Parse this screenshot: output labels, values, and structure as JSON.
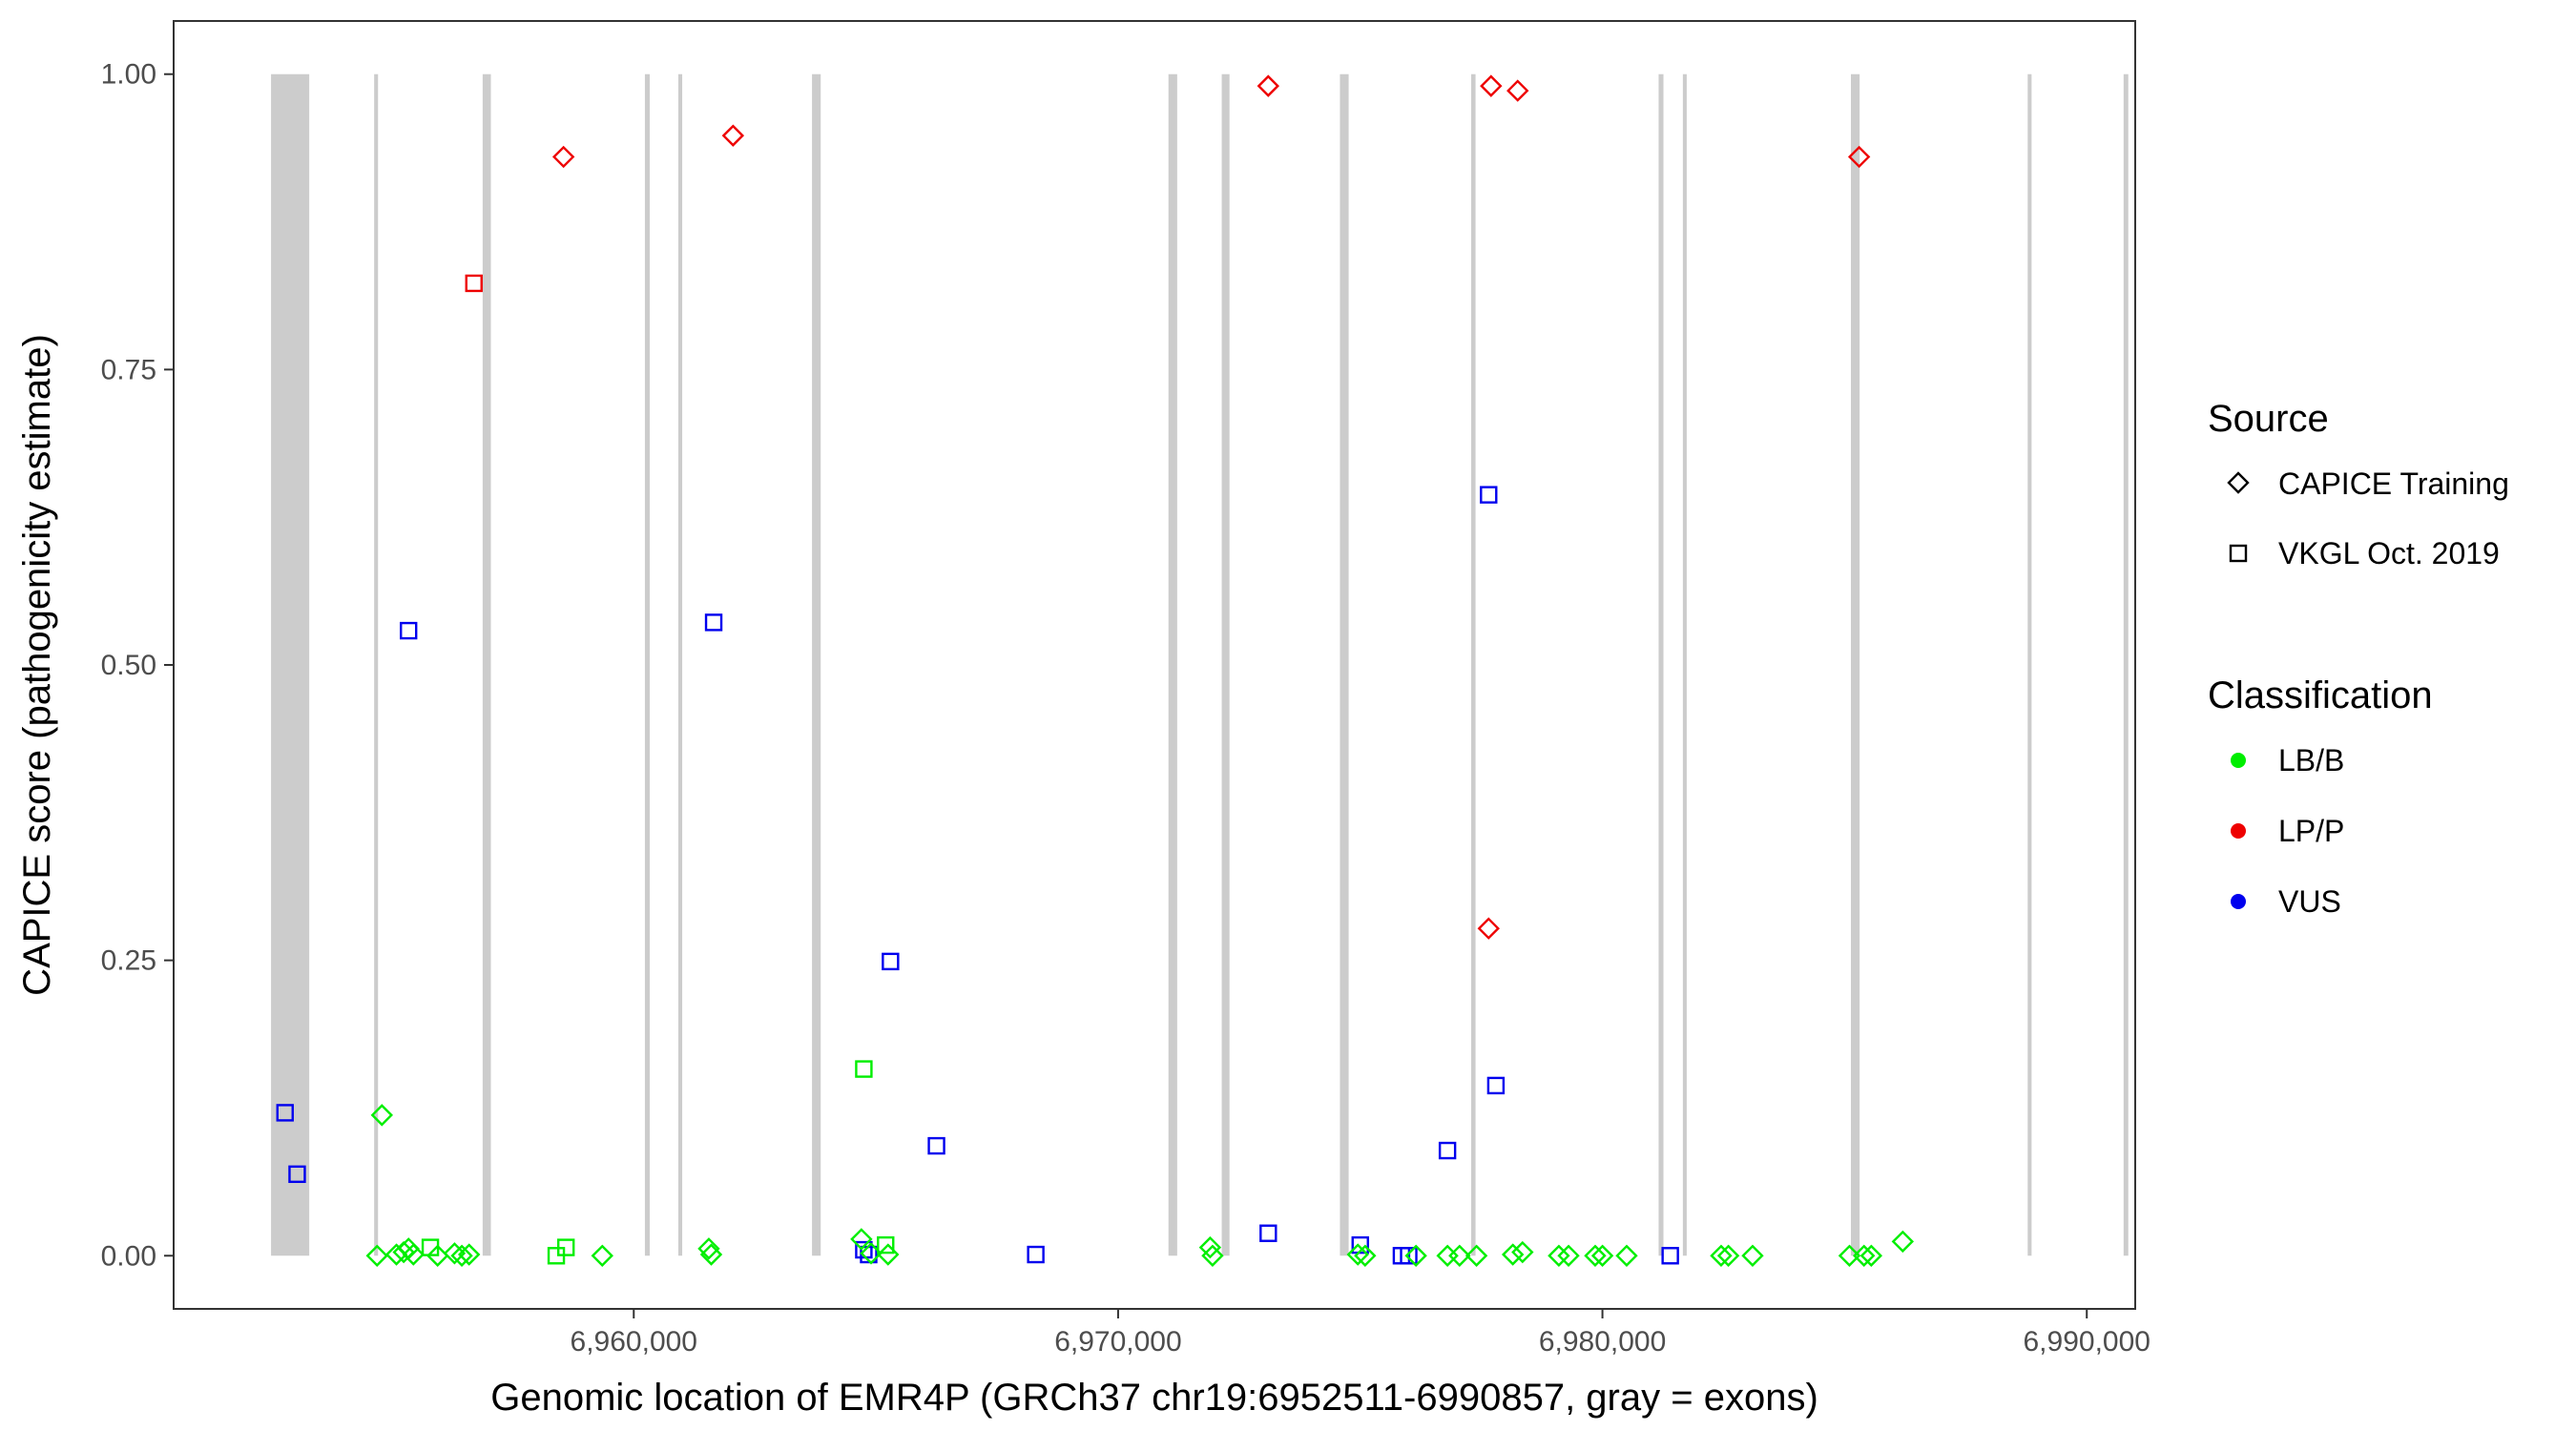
{
  "chart_data": {
    "type": "scatter",
    "xlabel": "Genomic location of EMR4P (GRCh37 chr19:6952511-6990857, gray = exons)",
    "ylabel": "CAPICE score (pathogenicity estimate)",
    "xlim": [
      6950500,
      6991000
    ],
    "ylim": [
      -0.045,
      1.045
    ],
    "x_ticks": [
      6960000,
      6970000,
      6980000,
      6990000
    ],
    "x_tick_labels": [
      "6,960,000",
      "6,970,000",
      "6,980,000",
      "6,990,000"
    ],
    "y_ticks": [
      0,
      0.25,
      0.5,
      0.75,
      1.0
    ],
    "y_tick_labels": [
      "0.00",
      "0.25",
      "0.50",
      "0.75",
      "1.00"
    ],
    "grid": false,
    "exons": [
      [
        6952511,
        6953300
      ],
      [
        6954640,
        6954720
      ],
      [
        6956880,
        6957050
      ],
      [
        6960230,
        6960330
      ],
      [
        6960920,
        6961000
      ],
      [
        6963680,
        6963860
      ],
      [
        6971040,
        6971220
      ],
      [
        6972140,
        6972300
      ],
      [
        6974580,
        6974760
      ],
      [
        6977290,
        6977380
      ],
      [
        6981160,
        6981260
      ],
      [
        6981660,
        6981740
      ],
      [
        6985130,
        6985310
      ],
      [
        6988780,
        6988860
      ],
      [
        6990760,
        6990857
      ]
    ],
    "legend": {
      "placement": "right",
      "source": {
        "title": "Source",
        "entries": [
          {
            "label": "CAPICE Training",
            "shape": "diamond"
          },
          {
            "label": "VKGL Oct. 2019",
            "shape": "square"
          }
        ]
      },
      "classification": {
        "title": "Classification",
        "entries": [
          {
            "label": "LB/B",
            "color": "#00ee00"
          },
          {
            "label": "LP/P",
            "color": "#ee0000"
          },
          {
            "label": "VUS",
            "color": "#0000ee"
          }
        ]
      }
    },
    "colors": {
      "LB/B": "#00ee00",
      "LP/P": "#ee0000",
      "VUS": "#0000ee",
      "exon": "#cccccc"
    },
    "points": [
      {
        "x": 6958550,
        "y": 0.93,
        "source": "CAPICE Training",
        "class": "LP/P"
      },
      {
        "x": 6962050,
        "y": 0.948,
        "source": "CAPICE Training",
        "class": "LP/P"
      },
      {
        "x": 6973100,
        "y": 0.99,
        "source": "CAPICE Training",
        "class": "LP/P"
      },
      {
        "x": 6977700,
        "y": 0.99,
        "source": "CAPICE Training",
        "class": "LP/P"
      },
      {
        "x": 6978250,
        "y": 0.986,
        "source": "CAPICE Training",
        "class": "LP/P"
      },
      {
        "x": 6985300,
        "y": 0.93,
        "source": "CAPICE Training",
        "class": "LP/P"
      },
      {
        "x": 6977650,
        "y": 0.277,
        "source": "CAPICE Training",
        "class": "LP/P"
      },
      {
        "x": 6956700,
        "y": 0.823,
        "source": "VKGL Oct. 2019",
        "class": "LP/P"
      },
      {
        "x": 6952800,
        "y": 0.121,
        "source": "VKGL Oct. 2019",
        "class": "VUS"
      },
      {
        "x": 6953050,
        "y": 0.069,
        "source": "VKGL Oct. 2019",
        "class": "VUS"
      },
      {
        "x": 6955350,
        "y": 0.529,
        "source": "VKGL Oct. 2019",
        "class": "VUS"
      },
      {
        "x": 6961650,
        "y": 0.536,
        "source": "VKGL Oct. 2019",
        "class": "VUS"
      },
      {
        "x": 6965300,
        "y": 0.249,
        "source": "VKGL Oct. 2019",
        "class": "VUS"
      },
      {
        "x": 6966250,
        "y": 0.093,
        "source": "VKGL Oct. 2019",
        "class": "VUS"
      },
      {
        "x": 6964750,
        "y": 0.005,
        "source": "VKGL Oct. 2019",
        "class": "VUS"
      },
      {
        "x": 6964850,
        "y": 0.001,
        "source": "VKGL Oct. 2019",
        "class": "VUS"
      },
      {
        "x": 6968300,
        "y": 0.001,
        "source": "VKGL Oct. 2019",
        "class": "VUS"
      },
      {
        "x": 6973100,
        "y": 0.019,
        "source": "VKGL Oct. 2019",
        "class": "VUS"
      },
      {
        "x": 6975000,
        "y": 0.009,
        "source": "VKGL Oct. 2019",
        "class": "VUS"
      },
      {
        "x": 6975850,
        "y": 0.0,
        "source": "VKGL Oct. 2019",
        "class": "VUS"
      },
      {
        "x": 6976000,
        "y": 0.0,
        "source": "VKGL Oct. 2019",
        "class": "VUS"
      },
      {
        "x": 6976800,
        "y": 0.089,
        "source": "VKGL Oct. 2019",
        "class": "VUS"
      },
      {
        "x": 6977650,
        "y": 0.644,
        "source": "VKGL Oct. 2019",
        "class": "VUS"
      },
      {
        "x": 6977800,
        "y": 0.144,
        "source": "VKGL Oct. 2019",
        "class": "VUS"
      },
      {
        "x": 6981400,
        "y": 0.0,
        "source": "VKGL Oct. 2019",
        "class": "VUS"
      },
      {
        "x": 6964750,
        "y": 0.158,
        "source": "VKGL Oct. 2019",
        "class": "LB/B"
      },
      {
        "x": 6955800,
        "y": 0.007,
        "source": "VKGL Oct. 2019",
        "class": "LB/B"
      },
      {
        "x": 6958400,
        "y": 0.0,
        "source": "VKGL Oct. 2019",
        "class": "LB/B"
      },
      {
        "x": 6958600,
        "y": 0.007,
        "source": "VKGL Oct. 2019",
        "class": "LB/B"
      },
      {
        "x": 6965200,
        "y": 0.009,
        "source": "VKGL Oct. 2019",
        "class": "LB/B"
      },
      {
        "x": 6954800,
        "y": 0.119,
        "source": "CAPICE Training",
        "class": "LB/B"
      },
      {
        "x": 6954700,
        "y": 0.0,
        "source": "CAPICE Training",
        "class": "LB/B"
      },
      {
        "x": 6955100,
        "y": 0.001,
        "source": "CAPICE Training",
        "class": "LB/B"
      },
      {
        "x": 6955250,
        "y": 0.003,
        "source": "CAPICE Training",
        "class": "LB/B"
      },
      {
        "x": 6955350,
        "y": 0.006,
        "source": "CAPICE Training",
        "class": "LB/B"
      },
      {
        "x": 6955450,
        "y": 0.001,
        "source": "CAPICE Training",
        "class": "LB/B"
      },
      {
        "x": 6955950,
        "y": 0.0,
        "source": "CAPICE Training",
        "class": "LB/B"
      },
      {
        "x": 6956300,
        "y": 0.002,
        "source": "CAPICE Training",
        "class": "LB/B"
      },
      {
        "x": 6956450,
        "y": 0.0,
        "source": "CAPICE Training",
        "class": "LB/B"
      },
      {
        "x": 6956600,
        "y": 0.001,
        "source": "CAPICE Training",
        "class": "LB/B"
      },
      {
        "x": 6959350,
        "y": 0.0,
        "source": "CAPICE Training",
        "class": "LB/B"
      },
      {
        "x": 6961550,
        "y": 0.006,
        "source": "CAPICE Training",
        "class": "LB/B"
      },
      {
        "x": 6961600,
        "y": 0.001,
        "source": "CAPICE Training",
        "class": "LB/B"
      },
      {
        "x": 6964700,
        "y": 0.014,
        "source": "CAPICE Training",
        "class": "LB/B"
      },
      {
        "x": 6964900,
        "y": 0.002,
        "source": "CAPICE Training",
        "class": "LB/B"
      },
      {
        "x": 6965250,
        "y": 0.001,
        "source": "CAPICE Training",
        "class": "LB/B"
      },
      {
        "x": 6971900,
        "y": 0.007,
        "source": "CAPICE Training",
        "class": "LB/B"
      },
      {
        "x": 6971950,
        "y": 0.0,
        "source": "CAPICE Training",
        "class": "LB/B"
      },
      {
        "x": 6974950,
        "y": 0.001,
        "source": "CAPICE Training",
        "class": "LB/B"
      },
      {
        "x": 6975100,
        "y": 0.0,
        "source": "CAPICE Training",
        "class": "LB/B"
      },
      {
        "x": 6976150,
        "y": 0.0,
        "source": "CAPICE Training",
        "class": "LB/B"
      },
      {
        "x": 6976800,
        "y": 0.0,
        "source": "CAPICE Training",
        "class": "LB/B"
      },
      {
        "x": 6977050,
        "y": 0.0,
        "source": "CAPICE Training",
        "class": "LB/B"
      },
      {
        "x": 6977400,
        "y": 0.0,
        "source": "CAPICE Training",
        "class": "LB/B"
      },
      {
        "x": 6978150,
        "y": 0.001,
        "source": "CAPICE Training",
        "class": "LB/B"
      },
      {
        "x": 6978350,
        "y": 0.003,
        "source": "CAPICE Training",
        "class": "LB/B"
      },
      {
        "x": 6979100,
        "y": 0.0,
        "source": "CAPICE Training",
        "class": "LB/B"
      },
      {
        "x": 6979300,
        "y": 0.0,
        "source": "CAPICE Training",
        "class": "LB/B"
      },
      {
        "x": 6979850,
        "y": 0.0,
        "source": "CAPICE Training",
        "class": "LB/B"
      },
      {
        "x": 6980000,
        "y": 0.0,
        "source": "CAPICE Training",
        "class": "LB/B"
      },
      {
        "x": 6980500,
        "y": 0.0,
        "source": "CAPICE Training",
        "class": "LB/B"
      },
      {
        "x": 6982450,
        "y": 0.0,
        "source": "CAPICE Training",
        "class": "LB/B"
      },
      {
        "x": 6982600,
        "y": 0.0,
        "source": "CAPICE Training",
        "class": "LB/B"
      },
      {
        "x": 6983100,
        "y": 0.0,
        "source": "CAPICE Training",
        "class": "LB/B"
      },
      {
        "x": 6985100,
        "y": 0.0,
        "source": "CAPICE Training",
        "class": "LB/B"
      },
      {
        "x": 6985400,
        "y": 0.0,
        "source": "CAPICE Training",
        "class": "LB/B"
      },
      {
        "x": 6985550,
        "y": 0.0,
        "source": "CAPICE Training",
        "class": "LB/B"
      },
      {
        "x": 6986200,
        "y": 0.012,
        "source": "CAPICE Training",
        "class": "LB/B"
      }
    ]
  }
}
